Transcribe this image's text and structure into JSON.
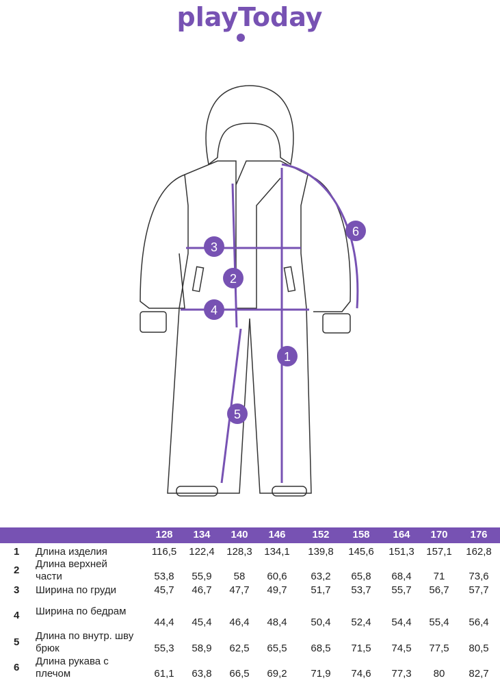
{
  "brand": {
    "logo_text": "playToday",
    "color": "#7752b3"
  },
  "diagram": {
    "markers": [
      "1",
      "2",
      "3",
      "4",
      "5",
      "6"
    ]
  },
  "table": {
    "sizes": [
      "128",
      "134",
      "140",
      "146",
      "152",
      "158",
      "164",
      "170",
      "176"
    ],
    "rows": [
      {
        "num": "1",
        "label": [
          "Длина изделия"
        ],
        "values": [
          "116,5",
          "122,4",
          "128,3",
          "134,1",
          "139,8",
          "145,6",
          "151,3",
          "157,1",
          "162,8"
        ]
      },
      {
        "num": "2",
        "label": [
          "Длина верхней",
          "части"
        ],
        "values": [
          "53,8",
          "55,9",
          "58",
          "60,6",
          "63,2",
          "65,8",
          "68,4",
          "71",
          "73,6"
        ]
      },
      {
        "num": "3",
        "label": [
          "Ширина по груди"
        ],
        "values": [
          "45,7",
          "46,7",
          "47,7",
          "49,7",
          "51,7",
          "53,7",
          "55,7",
          "56,7",
          "57,7"
        ]
      },
      {
        "num": "4",
        "label": [
          "Ширина по бедрам"
        ],
        "values": [
          "44,4",
          "45,4",
          "46,4",
          "48,4",
          "50,4",
          "52,4",
          "54,4",
          "55,4",
          "56,4"
        ]
      },
      {
        "num": "5",
        "label": [
          "Длина по внутр. шву",
          "брюк"
        ],
        "values": [
          "55,3",
          "58,9",
          "62,5",
          "65,5",
          "68,5",
          "71,5",
          "74,5",
          "77,5",
          "80,5"
        ]
      },
      {
        "num": "6",
        "label": [
          "Длина рукава с",
          "плечом"
        ],
        "values": [
          "61,1",
          "63,8",
          "66,5",
          "69,2",
          "71,9",
          "74,6",
          "77,3",
          "80",
          "82,7"
        ]
      }
    ]
  }
}
